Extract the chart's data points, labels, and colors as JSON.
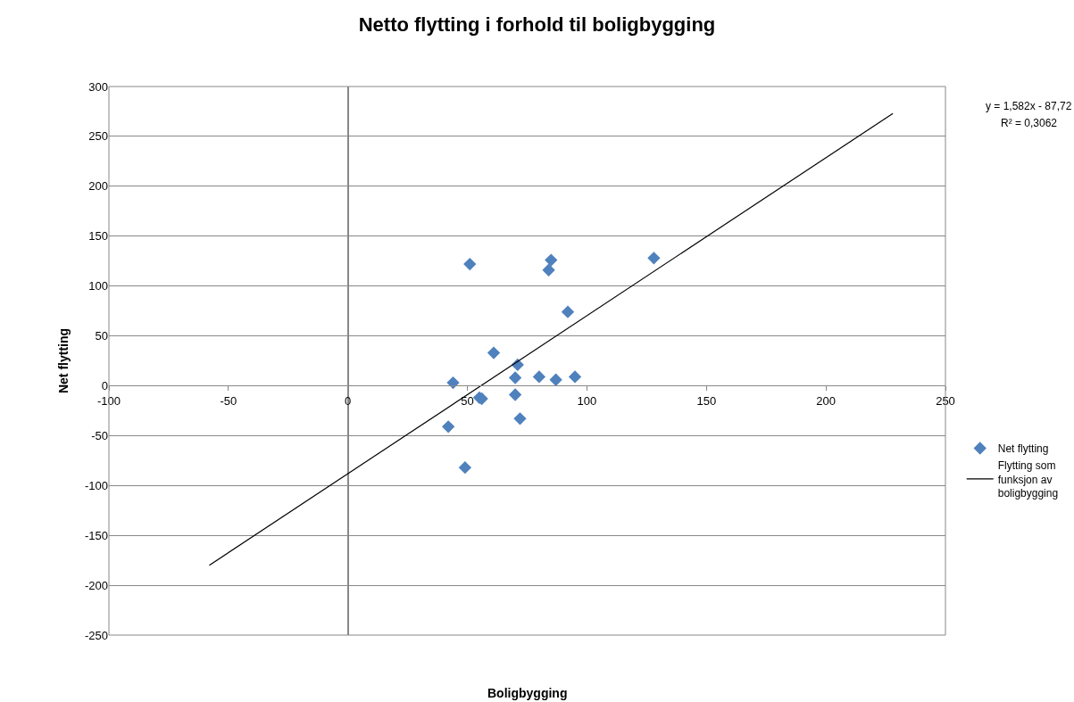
{
  "chart_data": {
    "type": "scatter",
    "title": "Netto flytting i forhold til boligbygging",
    "xlabel": "Boligbygging",
    "ylabel": "Net flytting",
    "annotations": [
      "y = 1,582x - 87,72",
      "R² = 0,3062"
    ],
    "xlim": [
      -100,
      250
    ],
    "xticks": [
      -100,
      -50,
      0,
      50,
      100,
      150,
      200,
      250
    ],
    "ylim": [
      -250,
      300
    ],
    "yticks": [
      -250,
      -200,
      -150,
      -100,
      -50,
      0,
      50,
      100,
      150,
      200,
      250,
      300
    ],
    "grid": "y",
    "legend": "right",
    "marker": "diamond",
    "series": [
      {
        "name": "Net flytting",
        "color": "#4f81bd",
        "x": [
          51,
          85,
          84,
          128,
          92,
          61,
          71,
          44,
          70,
          80,
          87,
          95,
          70,
          55,
          56,
          72,
          42,
          49
        ],
        "values": [
          122,
          126,
          116,
          128,
          74,
          33,
          21,
          3,
          8,
          9,
          6,
          9,
          -9,
          -12,
          -13,
          -33,
          -41,
          -82
        ]
      },
      {
        "name": "Flytting som funksjon av boligbygging",
        "type": "line",
        "color": "#000000",
        "marker": "none",
        "x": [
          -58,
          228
        ],
        "values": [
          -180,
          273
        ]
      }
    ]
  }
}
